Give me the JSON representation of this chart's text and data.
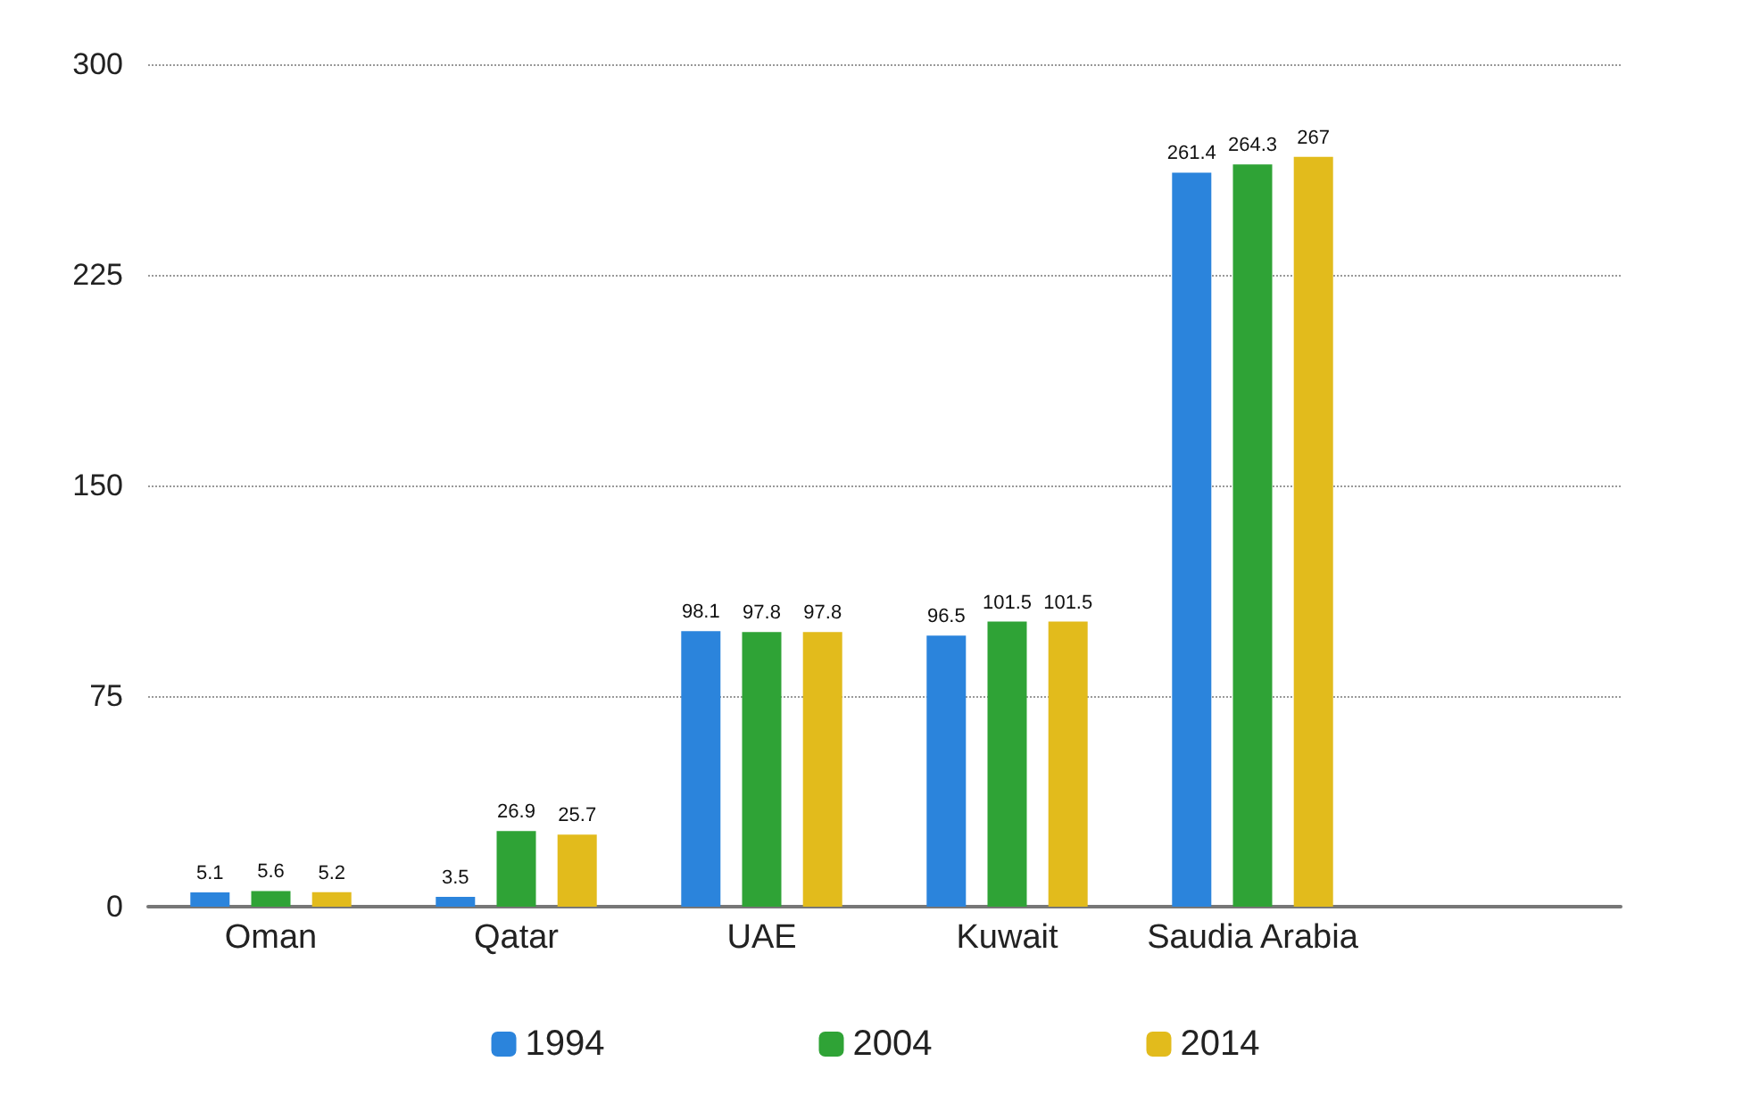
{
  "chart_data": {
    "type": "bar",
    "categories": [
      "Oman",
      "Qatar",
      "UAE",
      "Kuwait",
      "Saudia Arabia",
      null
    ],
    "series": [
      {
        "name": "1994",
        "color": "#2b84dc",
        "values": [
          5.1,
          3.5,
          98.1,
          96.5,
          261.4,
          null
        ]
      },
      {
        "name": "2004",
        "color": "#2fa336",
        "values": [
          5.6,
          26.9,
          97.8,
          101.5,
          264.3,
          null
        ]
      },
      {
        "name": "2014",
        "color": "#e2bb1c",
        "values": [
          5.2,
          25.7,
          97.8,
          101.5,
          267,
          null
        ]
      }
    ],
    "ylim": [
      0,
      300
    ],
    "yticks": [
      0,
      75,
      150,
      225,
      300
    ],
    "grid": "y",
    "legend": "bottom",
    "data_labels": true
  }
}
